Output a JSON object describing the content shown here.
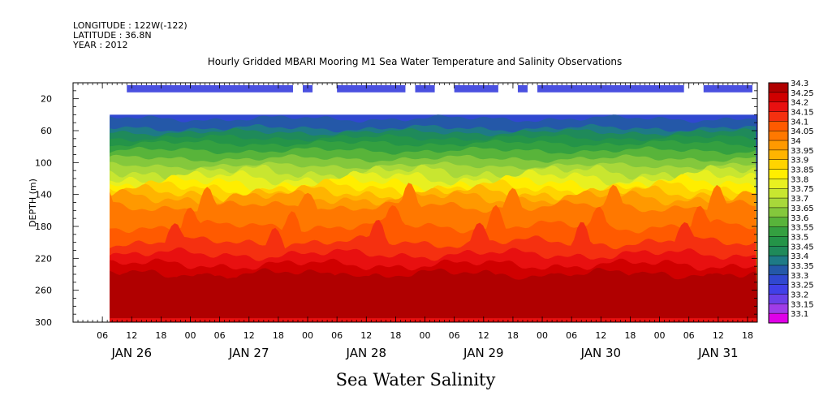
{
  "header": {
    "longitude": "LONGITUDE : 122W(-122)",
    "latitude": "LATITUDE : 36.8N",
    "year": "YEAR : 2012"
  },
  "chart_data": {
    "type": "heatmap",
    "title": "Hourly Gridded MBARI Mooring M1 Sea Water Temperature and Salinity Observations",
    "xlabel": "Sea Water Salinity",
    "ylabel": "DEPTH (m)",
    "ylim": [
      300,
      0
    ],
    "xlim_hours": [
      0,
      140
    ],
    "yticks": [
      20,
      60,
      100,
      140,
      180,
      220,
      260,
      300
    ],
    "hour_ticks": [
      {
        "h": 6,
        "label": "06"
      },
      {
        "h": 12,
        "label": "12"
      },
      {
        "h": 18,
        "label": "18"
      },
      {
        "h": 24,
        "label": "00"
      },
      {
        "h": 30,
        "label": "06"
      },
      {
        "h": 36,
        "label": "12"
      },
      {
        "h": 42,
        "label": "18"
      },
      {
        "h": 48,
        "label": "00"
      },
      {
        "h": 54,
        "label": "06"
      },
      {
        "h": 60,
        "label": "12"
      },
      {
        "h": 66,
        "label": "18"
      },
      {
        "h": 72,
        "label": "00"
      },
      {
        "h": 78,
        "label": "06"
      },
      {
        "h": 84,
        "label": "12"
      },
      {
        "h": 90,
        "label": "18"
      },
      {
        "h": 96,
        "label": "00"
      },
      {
        "h": 102,
        "label": "06"
      },
      {
        "h": 108,
        "label": "12"
      },
      {
        "h": 114,
        "label": "18"
      },
      {
        "h": 120,
        "label": "00"
      },
      {
        "h": 126,
        "label": "06"
      },
      {
        "h": 132,
        "label": "12"
      },
      {
        "h": 138,
        "label": "18"
      }
    ],
    "day_labels": [
      {
        "h": 12,
        "label": "JAN 26"
      },
      {
        "h": 36,
        "label": "JAN 27"
      },
      {
        "h": 60,
        "label": "JAN 28"
      },
      {
        "h": 84,
        "label": "JAN 29"
      },
      {
        "h": 108,
        "label": "JAN 30"
      },
      {
        "h": 132,
        "label": "JAN 31"
      }
    ],
    "data_start_hour": 7.5,
    "data_depth_range": [
      40,
      300
    ],
    "isolines": [
      {
        "level": 33.3,
        "depth": 45
      },
      {
        "level": 33.35,
        "depth": 57
      },
      {
        "level": 33.4,
        "depth": 62
      },
      {
        "level": 33.45,
        "depth": 69
      },
      {
        "level": 33.5,
        "depth": 76
      },
      {
        "level": 33.55,
        "depth": 85
      },
      {
        "level": 33.6,
        "depth": 95
      },
      {
        "level": 33.65,
        "depth": 104
      },
      {
        "level": 33.7,
        "depth": 112
      },
      {
        "level": 33.75,
        "depth": 119
      },
      {
        "level": 33.8,
        "depth": 126
      },
      {
        "level": 33.85,
        "depth": 132
      },
      {
        "level": 33.9,
        "depth": 138
      },
      {
        "level": 33.95,
        "depth": 144
      },
      {
        "level": 34.0,
        "depth": 155
      },
      {
        "level": 34.05,
        "depth": 180
      },
      {
        "level": 34.1,
        "depth": 200
      },
      {
        "level": 34.15,
        "depth": 215
      },
      {
        "level": 34.2,
        "depth": 228
      },
      {
        "level": 34.25,
        "depth": 240
      }
    ],
    "deep_core": {
      "level": 34.3,
      "top_depth": 243,
      "bottom_depth": 292
    },
    "near_surface_segments": [
      [
        11,
        45
      ],
      [
        47,
        49
      ],
      [
        54,
        68
      ],
      [
        70,
        74
      ],
      [
        78,
        87
      ],
      [
        91,
        93
      ],
      [
        95,
        125
      ],
      [
        129,
        139
      ]
    ],
    "colorbar": {
      "levels": [
        "34.3",
        "34.25",
        "34.2",
        "34.15",
        "34.1",
        "34.05",
        "34",
        "33.95",
        "33.9",
        "33.85",
        "33.8",
        "33.75",
        "33.7",
        "33.65",
        "33.6",
        "33.55",
        "33.5",
        "33.45",
        "33.4",
        "33.35",
        "33.3",
        "33.25",
        "33.2",
        "33.15",
        "33.1"
      ],
      "colors": [
        "#b00000",
        "#d00000",
        "#e81010",
        "#f53010",
        "#ff5a00",
        "#ff7800",
        "#ff9900",
        "#ffb400",
        "#ffd400",
        "#ffee00",
        "#e8f020",
        "#c8e630",
        "#a8d83a",
        "#84c83c",
        "#58b43a",
        "#34a040",
        "#249448",
        "#1f8a5a",
        "#1e7a86",
        "#2458a8",
        "#3048d0",
        "#4040e8",
        "#6a40e8",
        "#a03ce8",
        "#e000e8"
      ]
    }
  }
}
